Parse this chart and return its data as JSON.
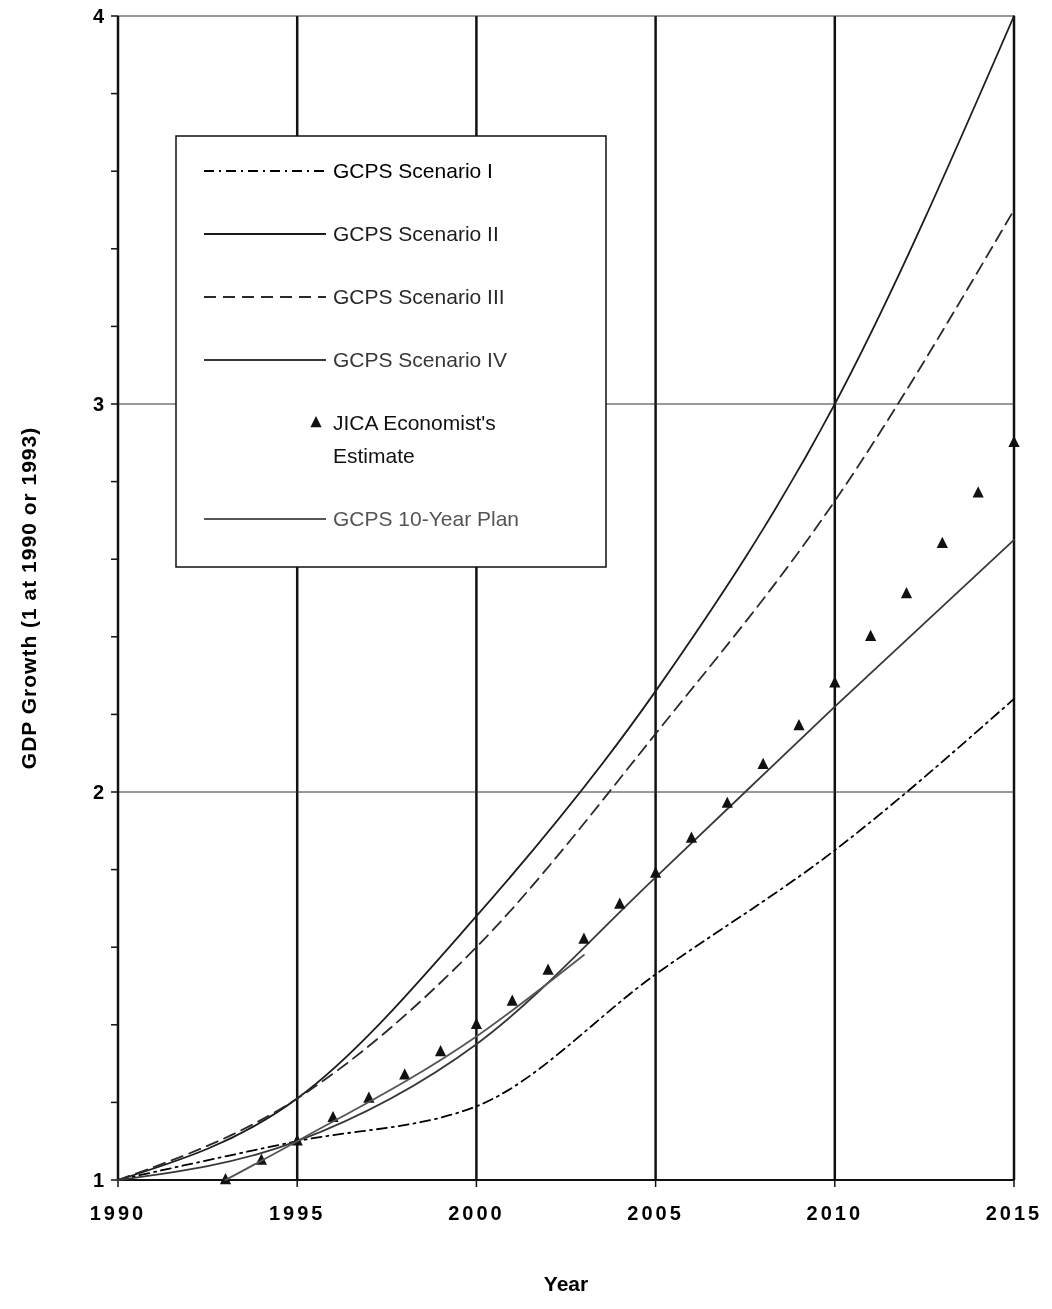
{
  "chart_data": {
    "type": "line",
    "xlabel": "Year",
    "ylabel": "GDP Growth (1 at 1990 or 1993)",
    "xlim": [
      1990,
      2015
    ],
    "xticks": [
      1990,
      1995,
      2000,
      2005,
      2010,
      2015
    ],
    "ylim": [
      1,
      4
    ],
    "yticks": [
      1,
      {
        "value": 1.2,
        "label": null
      },
      {
        "value": 1.4,
        "label": null
      },
      {
        "value": 1.6,
        "label": null
      },
      {
        "value": 1.8,
        "label": null
      },
      2,
      {
        "value": 2.2,
        "label": null
      },
      {
        "value": 2.4,
        "label": null
      },
      {
        "value": 2.6,
        "label": null
      },
      {
        "value": 2.8,
        "label": null
      },
      3,
      {
        "value": 3.2,
        "label": null
      },
      {
        "value": 3.4,
        "label": null
      },
      {
        "value": 3.6,
        "label": null
      },
      {
        "value": 3.8,
        "label": null
      },
      4
    ],
    "grid": true,
    "legend": "top left",
    "marker": "none",
    "series": [
      {
        "name": "GCPS Scenario I",
        "color": "#000000",
        "line_style": "dashdot",
        "x": [
          1990,
          1995,
          2000,
          2005,
          2010,
          2015
        ],
        "values": [
          1.0,
          1.1,
          1.19,
          1.53,
          1.85,
          2.24
        ]
      },
      {
        "name": "GCPS Scenario II",
        "color": "#1c1c1c",
        "line_style": "solid",
        "x": [
          1990,
          1995,
          2000,
          2005,
          2010,
          2015
        ],
        "values": [
          1.0,
          1.21,
          1.68,
          2.26,
          3.0,
          4.0
        ]
      },
      {
        "name": "GCPS Scenario III",
        "color": "#2a2a2a",
        "line_style": "dashed",
        "x": [
          1990,
          1995,
          2000,
          2005,
          2010,
          2015
        ],
        "values": [
          1.0,
          1.21,
          1.6,
          2.15,
          2.75,
          3.5
        ]
      },
      {
        "name": "GCPS Scenario IV",
        "color": "#383838",
        "line_style": "solid",
        "x": [
          1990,
          1995,
          2000,
          2005,
          2010,
          2015
        ],
        "values": [
          1.0,
          1.1,
          1.35,
          1.78,
          2.22,
          2.65
        ]
      },
      {
        "name": "JICA Economist's Estimate",
        "type": "scatter",
        "marker": "triangle",
        "color": "#111111",
        "x": [
          1993,
          1994,
          1995,
          1996,
          1997,
          1998,
          1999,
          2000,
          2001,
          2002,
          2003,
          2004,
          2005,
          2006,
          2007,
          2008,
          2009,
          2010,
          2011,
          2012,
          2013,
          2014,
          2015
        ],
        "values": [
          1.0,
          1.05,
          1.1,
          1.16,
          1.21,
          1.27,
          1.33,
          1.4,
          1.46,
          1.54,
          1.62,
          1.71,
          1.79,
          1.88,
          1.97,
          2.07,
          2.17,
          2.28,
          2.4,
          2.51,
          2.64,
          2.77,
          2.9
        ]
      },
      {
        "name": "GCPS 10-Year Plan",
        "color": "#555555",
        "line_style": "solid",
        "x": [
          1993,
          1995,
          2000,
          2003
        ],
        "values": [
          1.0,
          1.1,
          1.37,
          1.58
        ]
      }
    ]
  }
}
